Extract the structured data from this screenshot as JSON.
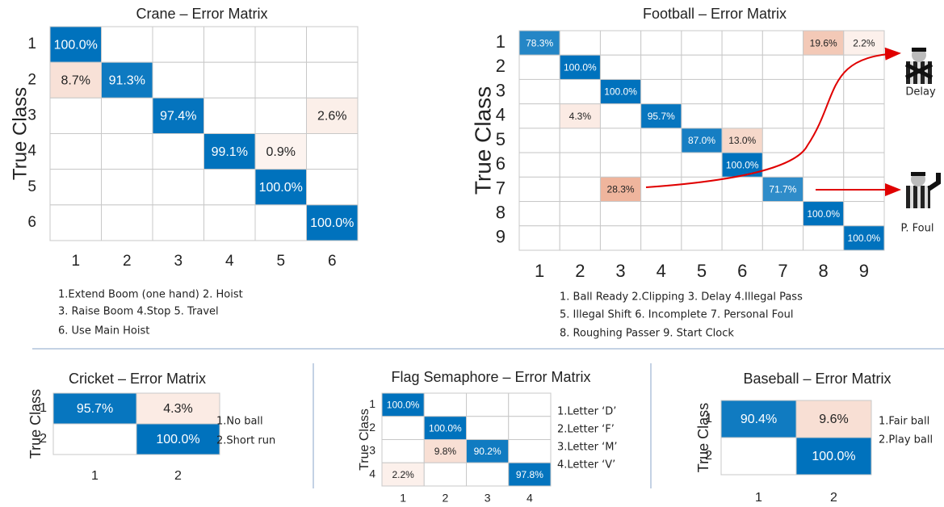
{
  "chart_data": [
    {
      "type": "heatmap",
      "title": "Crane – Error Matrix",
      "ylabel": "True Class",
      "categories": [
        "1",
        "2",
        "3",
        "4",
        "5",
        "6"
      ],
      "y_categories": [
        "1",
        "2",
        "3",
        "4",
        "5",
        "6"
      ],
      "values": [
        [
          100.0,
          null,
          null,
          null,
          null,
          null
        ],
        [
          8.7,
          91.3,
          null,
          null,
          null,
          null
        ],
        [
          null,
          null,
          97.4,
          null,
          null,
          2.6
        ],
        [
          null,
          null,
          null,
          99.1,
          0.9,
          null
        ],
        [
          null,
          null,
          null,
          null,
          100.0,
          null
        ],
        [
          null,
          null,
          null,
          null,
          null,
          100.0
        ]
      ],
      "value_labels": [
        [
          "100.0%",
          null,
          null,
          null,
          null,
          null
        ],
        [
          "8.7%",
          "91.3%",
          null,
          null,
          null,
          null
        ],
        [
          null,
          null,
          "97.4%",
          null,
          null,
          "2.6%"
        ],
        [
          null,
          null,
          null,
          "99.1%",
          "0.9%",
          null
        ],
        [
          null,
          null,
          null,
          null,
          "100.0%",
          null
        ],
        [
          null,
          null,
          null,
          null,
          null,
          "100.0%"
        ]
      ],
      "notes": [
        "1.Extend Boom (one hand) 2. Hoist",
        "3. Raise Boom  4.Stop  5. Travel",
        "6. Use Main Hoist"
      ],
      "diagonal_color": "#0072bd",
      "off_diagonal_color": "#d95319"
    },
    {
      "type": "heatmap",
      "title": "Football – Error Matrix",
      "ylabel": "True Class",
      "categories": [
        "1",
        "2",
        "3",
        "4",
        "5",
        "6",
        "7",
        "8",
        "9"
      ],
      "y_categories": [
        "1",
        "2",
        "3",
        "4",
        "5",
        "6",
        "7",
        "8",
        "9"
      ],
      "values": [
        [
          78.3,
          null,
          null,
          null,
          null,
          null,
          null,
          19.6,
          2.2
        ],
        [
          null,
          100.0,
          null,
          null,
          null,
          null,
          null,
          null,
          null
        ],
        [
          null,
          null,
          100.0,
          null,
          null,
          null,
          null,
          null,
          null
        ],
        [
          null,
          4.3,
          null,
          95.7,
          null,
          null,
          null,
          null,
          null
        ],
        [
          null,
          null,
          null,
          null,
          87.0,
          13.0,
          null,
          null,
          null
        ],
        [
          null,
          null,
          null,
          null,
          null,
          100.0,
          null,
          null,
          null
        ],
        [
          null,
          null,
          28.3,
          null,
          null,
          null,
          71.7,
          null,
          null
        ],
        [
          null,
          null,
          null,
          null,
          null,
          null,
          null,
          100.0,
          null
        ],
        [
          null,
          null,
          null,
          null,
          null,
          null,
          null,
          null,
          100.0
        ]
      ],
      "value_labels": [
        [
          "78.3%",
          null,
          null,
          null,
          null,
          null,
          null,
          "19.6%",
          "2.2%"
        ],
        [
          null,
          "100.0%",
          null,
          null,
          null,
          null,
          null,
          null,
          null
        ],
        [
          null,
          null,
          "100.0%",
          null,
          null,
          null,
          null,
          null,
          null
        ],
        [
          null,
          "4.3%",
          null,
          "95.7%",
          null,
          null,
          null,
          null,
          null
        ],
        [
          null,
          null,
          null,
          null,
          "87.0%",
          "13.0%",
          null,
          null,
          null
        ],
        [
          null,
          null,
          null,
          null,
          null,
          "100.0%",
          null,
          null,
          null
        ],
        [
          null,
          null,
          "28.3%",
          null,
          null,
          null,
          "71.7%",
          null,
          null
        ],
        [
          null,
          null,
          null,
          null,
          null,
          null,
          null,
          "100.0%",
          null
        ],
        [
          null,
          null,
          null,
          null,
          null,
          null,
          null,
          null,
          "100.0%"
        ]
      ],
      "notes": [
        "1. Ball Ready  2.Clipping  3. Delay  4.Illegal Pass",
        "5. Illegal Shift  6. Incomplete  7. Personal Foul",
        "8. Roughing Passer  9. Start Clock"
      ],
      "annotations": [
        "Delay",
        "P. Foul"
      ],
      "diagonal_color": "#0072bd",
      "off_diagonal_color": "#d95319"
    },
    {
      "type": "heatmap",
      "title": "Cricket – Error Matrix",
      "ylabel": "True Class",
      "categories": [
        "1",
        "2"
      ],
      "y_categories": [
        "1",
        "2"
      ],
      "values": [
        [
          95.7,
          4.3
        ],
        [
          null,
          100.0
        ]
      ],
      "value_labels": [
        [
          "95.7%",
          "4.3%"
        ],
        [
          null,
          "100.0%"
        ]
      ],
      "notes": [
        "1.No ball",
        "2.Short run"
      ],
      "diagonal_color": "#0072bd",
      "off_diagonal_color": "#d95319"
    },
    {
      "type": "heatmap",
      "title": "Flag Semaphore – Error Matrix",
      "ylabel": "True Class",
      "categories": [
        "1",
        "2",
        "3",
        "4"
      ],
      "y_categories": [
        "1",
        "2",
        "3",
        "4"
      ],
      "values": [
        [
          100.0,
          null,
          null,
          null
        ],
        [
          null,
          100.0,
          null,
          null
        ],
        [
          null,
          9.8,
          90.2,
          null
        ],
        [
          2.2,
          null,
          null,
          97.8
        ]
      ],
      "value_labels": [
        [
          "100.0%",
          null,
          null,
          null
        ],
        [
          null,
          "100.0%",
          null,
          null
        ],
        [
          null,
          "9.8%",
          "90.2%",
          null
        ],
        [
          "2.2%",
          null,
          null,
          "97.8%"
        ]
      ],
      "notes": [
        "1.Letter ‘D’",
        "2.Letter ‘F’",
        "3.Letter ‘M’",
        "4.Letter ‘V’"
      ],
      "diagonal_color": "#0072bd",
      "off_diagonal_color": "#d95319"
    },
    {
      "type": "heatmap",
      "title": "Baseball  – Error Matrix",
      "ylabel": "True Class",
      "categories": [
        "1",
        "2"
      ],
      "y_categories": [
        "1",
        "2"
      ],
      "values": [
        [
          90.4,
          9.6
        ],
        [
          null,
          100.0
        ]
      ],
      "value_labels": [
        [
          "90.4%",
          "9.6%"
        ],
        [
          null,
          "100.0%"
        ]
      ],
      "notes": [
        "1.Fair ball",
        "2.Play ball"
      ],
      "diagonal_color": "#0072bd",
      "off_diagonal_color": "#d95319"
    }
  ]
}
